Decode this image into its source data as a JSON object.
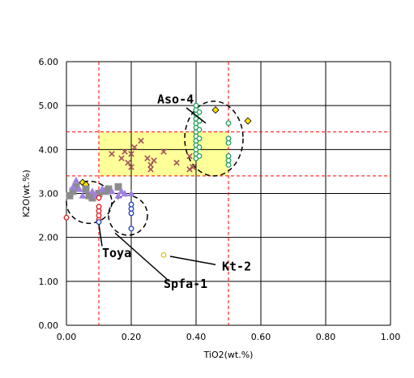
{
  "chart_data": {
    "type": "scatter",
    "xlabel": "TiO2(wt.%)",
    "ylabel": "K2O(wt.%)",
    "xlim": [
      0,
      1
    ],
    "ylim": [
      0,
      6
    ],
    "x_ticks": [
      "0.00",
      "0.20",
      "0.40",
      "0.60",
      "0.80",
      "1.00"
    ],
    "y_ticks": [
      "0.00",
      "1.00",
      "2.00",
      "3.00",
      "4.00",
      "5.00",
      "6.00"
    ],
    "grid": true,
    "legend": "none",
    "colors": {
      "grid": "#000000",
      "ref_line": "#ff0000",
      "range_box": "#ffff99",
      "x_marker": "#a0505a",
      "circle_green": "#22a05a",
      "circle_red": "#e02020",
      "circle_blue": "#2040c0",
      "circle_yellow": "#e0c020",
      "diamond_yellow": "#ffe000",
      "square_gray": "#8c8c8c",
      "triangle_purple": "#a080e0"
    },
    "ref_lines": {
      "x": [
        0.1,
        0.5
      ],
      "y": [
        3.4,
        4.4
      ]
    },
    "range_box": {
      "x": [
        0.1,
        0.5
      ],
      "y": [
        3.4,
        4.4
      ]
    },
    "series": [
      {
        "marker": "x",
        "color": "#a0505a",
        "points": [
          [
            0.14,
            3.9
          ],
          [
            0.17,
            3.8
          ],
          [
            0.18,
            3.95
          ],
          [
            0.19,
            3.7
          ],
          [
            0.2,
            3.6
          ],
          [
            0.2,
            3.9
          ],
          [
            0.21,
            4.05
          ],
          [
            0.23,
            4.2
          ],
          [
            0.25,
            3.8
          ],
          [
            0.26,
            3.65
          ],
          [
            0.26,
            3.55
          ],
          [
            0.27,
            3.75
          ],
          [
            0.3,
            3.95
          ],
          [
            0.34,
            3.7
          ],
          [
            0.38,
            3.85
          ],
          [
            0.39,
            3.6
          ],
          [
            0.38,
            3.55
          ]
        ]
      },
      {
        "marker": "circle",
        "color": "#22a05a",
        "points": [
          [
            0.4,
            3.8
          ],
          [
            0.4,
            3.9
          ],
          [
            0.4,
            4.0
          ],
          [
            0.4,
            4.1
          ],
          [
            0.4,
            4.2
          ],
          [
            0.4,
            4.3
          ],
          [
            0.4,
            4.4
          ],
          [
            0.4,
            4.5
          ],
          [
            0.4,
            4.6
          ],
          [
            0.4,
            4.7
          ],
          [
            0.4,
            4.8
          ],
          [
            0.4,
            4.9
          ],
          [
            0.4,
            5.0
          ],
          [
            0.41,
            3.85
          ],
          [
            0.41,
            4.05
          ],
          [
            0.41,
            4.25
          ],
          [
            0.41,
            4.45
          ],
          [
            0.41,
            4.65
          ],
          [
            0.41,
            4.85
          ],
          [
            0.5,
            3.65
          ],
          [
            0.5,
            3.75
          ],
          [
            0.5,
            3.85
          ],
          [
            0.5,
            4.15
          ],
          [
            0.5,
            4.25
          ],
          [
            0.5,
            4.6
          ]
        ]
      },
      {
        "marker": "diamond",
        "color": "#ffe000",
        "points": [
          [
            0.46,
            4.9
          ],
          [
            0.56,
            4.65
          ],
          [
            0.05,
            3.25
          ],
          [
            0.06,
            3.2
          ]
        ]
      },
      {
        "marker": "square",
        "color": "#8c8c8c",
        "points": [
          [
            0.01,
            2.95
          ],
          [
            0.02,
            3.05
          ],
          [
            0.03,
            3.15
          ],
          [
            0.06,
            3.1
          ],
          [
            0.07,
            2.95
          ],
          [
            0.08,
            2.9
          ],
          [
            0.1,
            3.0
          ],
          [
            0.12,
            3.05
          ],
          [
            0.13,
            3.1
          ],
          [
            0.16,
            3.15
          ]
        ]
      },
      {
        "marker": "triangle",
        "color": "#a080e0",
        "points": [
          [
            0.02,
            3.15
          ],
          [
            0.03,
            3.3
          ],
          [
            0.04,
            3.1
          ],
          [
            0.05,
            2.95
          ],
          [
            0.08,
            3.05
          ],
          [
            0.09,
            2.95
          ],
          [
            0.11,
            3.1
          ],
          [
            0.14,
            3.05
          ],
          [
            0.16,
            2.95
          ],
          [
            0.17,
            3.05
          ],
          [
            0.18,
            3.0
          ],
          [
            0.2,
            3.0
          ]
        ]
      },
      {
        "marker": "circle",
        "color": "#e02020",
        "points": [
          [
            0.0,
            2.45
          ],
          [
            0.1,
            2.4
          ],
          [
            0.1,
            2.5
          ],
          [
            0.1,
            2.6
          ],
          [
            0.1,
            2.7
          ],
          [
            0.1,
            2.9
          ]
        ]
      },
      {
        "marker": "circle",
        "color": "#2040c0",
        "points": [
          [
            0.1,
            2.35
          ],
          [
            0.2,
            2.2
          ],
          [
            0.2,
            2.55
          ],
          [
            0.2,
            2.65
          ],
          [
            0.2,
            2.75
          ]
        ]
      },
      {
        "marker": "circle",
        "color": "#e0c020",
        "points": [
          [
            0.3,
            1.6
          ]
        ]
      }
    ],
    "ellipses": [
      {
        "cx": 0.455,
        "cy": 4.25,
        "rx": 0.09,
        "ry": 0.85
      },
      {
        "cx": 0.07,
        "cy": 2.8,
        "rx": 0.07,
        "ry": 0.48
      },
      {
        "cx": 0.19,
        "cy": 2.5,
        "rx": 0.06,
        "ry": 0.45
      }
    ],
    "annotations": [
      {
        "text": "Aso-4",
        "at": [
          0.28,
          5.05
        ],
        "line_from": [
          0.37,
          4.95
        ],
        "line_to": [
          0.43,
          4.6
        ]
      },
      {
        "text": "Toya",
        "at": [
          0.11,
          1.55
        ],
        "line_from": [
          0.11,
          1.8
        ],
        "line_to": [
          0.1,
          2.3
        ]
      },
      {
        "text": "Spfa-1",
        "at": [
          0.3,
          0.85
        ],
        "line_from": [
          0.31,
          1.05
        ],
        "line_to": [
          0.15,
          2.1
        ]
      },
      {
        "text": "Kt-2",
        "at": [
          0.48,
          1.25
        ],
        "line_from": [
          0.46,
          1.38
        ],
        "line_to": [
          0.32,
          1.57
        ]
      }
    ]
  }
}
